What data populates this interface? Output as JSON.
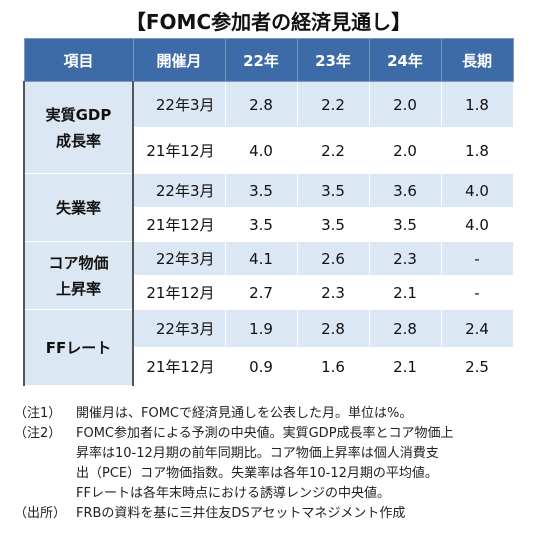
{
  "title": "【FOMC参加者の経済見通し】",
  "table": {
    "headers": [
      "項目",
      "開催月",
      "22年",
      "23年",
      "24年",
      "長期"
    ],
    "groups": [
      {
        "item": [
          "実質GDP",
          "成長率"
        ],
        "rows": [
          {
            "month": "22年3月",
            "values": [
              "2.8",
              "2.2",
              "2.0",
              "1.8"
            ]
          },
          {
            "month": "21年12月",
            "values": [
              "4.0",
              "2.2",
              "2.0",
              "1.8"
            ]
          }
        ]
      },
      {
        "item": [
          "失業率"
        ],
        "rows": [
          {
            "month": "22年3月",
            "values": [
              "3.5",
              "3.5",
              "3.6",
              "4.0"
            ]
          },
          {
            "month": "21年12月",
            "values": [
              "3.5",
              "3.5",
              "3.5",
              "4.0"
            ]
          }
        ]
      },
      {
        "item": [
          "コア物価",
          "上昇率"
        ],
        "rows": [
          {
            "month": "22年3月",
            "values": [
              "4.1",
              "2.6",
              "2.3",
              "-"
            ]
          },
          {
            "month": "21年12月",
            "values": [
              "2.7",
              "2.3",
              "2.1",
              "-"
            ]
          }
        ]
      },
      {
        "item": [
          "FFレート"
        ],
        "rows": [
          {
            "month": "22年3月",
            "values": [
              "1.9",
              "2.8",
              "2.8",
              "2.4"
            ]
          },
          {
            "month": "21年12月",
            "values": [
              "0.9",
              "1.6",
              "2.1",
              "2.5"
            ]
          }
        ]
      }
    ]
  },
  "notes": {
    "note1_tag": "（注1）",
    "note1_text": "開催月は、FOMCで経済見通しを公表した月。単位は%。",
    "note2_tag": "（注2）",
    "note2_lines": [
      "FOMC参加者による予測の中央値。実質GDP成長率とコア物価上",
      "昇率は10-12月期の前年同期比。コア物価上昇率は個人消費支",
      "出（PCE）コア物価指数。失業率は各年10-12月期の平均値。",
      "FFレートは各年末時点における誘導レンジの中央値。"
    ],
    "source_tag": "（出所）",
    "source_text": "FRBの資料を基に三井住友DSアセットマネジメント作成"
  }
}
